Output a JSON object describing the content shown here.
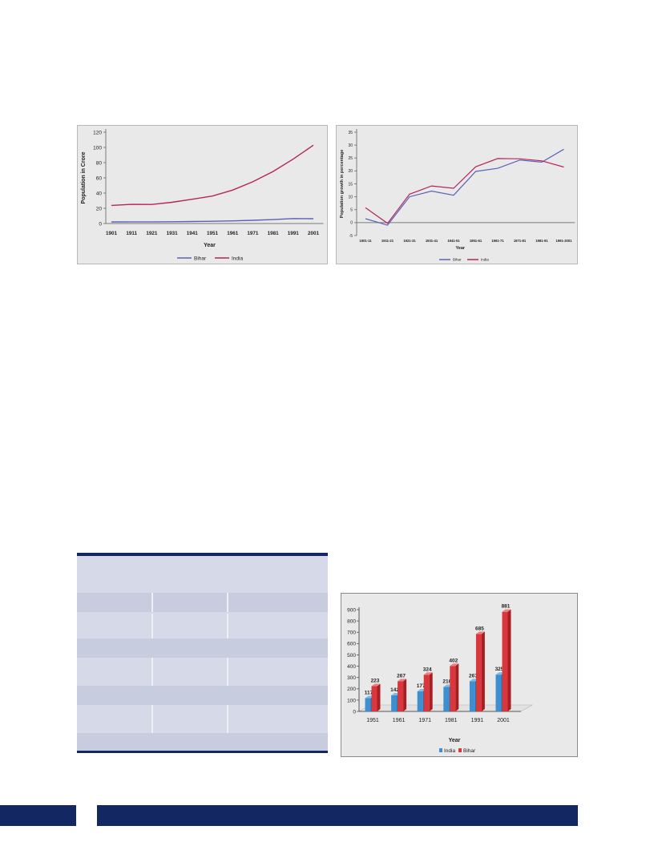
{
  "colors": {
    "navy": "#132763",
    "panel": "#e9e9e9",
    "india_line": "#b3255e",
    "bihar_line": "#5a62b5",
    "bar_india": "#3d8fd1",
    "bar_bihar": "#d9373c",
    "table_fill": "#d5d9e8",
    "table_header": "#c7ccdf"
  },
  "chart_data": [
    {
      "type": "line",
      "title": "",
      "xlabel": "Year",
      "ylabel": "Population in Crore",
      "categories": [
        "1901",
        "1911",
        "1921",
        "1931",
        "1941",
        "1951",
        "1961",
        "1971",
        "1981",
        "1991",
        "2001"
      ],
      "yticks": [
        "0",
        "20",
        "40",
        "60",
        "80",
        "100",
        "120"
      ],
      "ylim": [
        0,
        120
      ],
      "series": [
        {
          "name": "Bihar",
          "values": [
            2.1,
            2.2,
            2.2,
            2.3,
            2.6,
            3.0,
            3.5,
            4.2,
            5.2,
            6.5,
            6.3
          ]
        },
        {
          "name": "India",
          "values": [
            23.8,
            25.2,
            25.1,
            27.9,
            31.9,
            36.1,
            43.9,
            54.8,
            68.3,
            84.6,
            102.9
          ]
        }
      ],
      "legend_position": "bottom",
      "grid": false
    },
    {
      "type": "line",
      "title": "",
      "xlabel": "Year",
      "ylabel": "Population growth in percentage",
      "categories": [
        "1901-11",
        "1911-21",
        "1921-31",
        "1931-41",
        "1941-51",
        "1951-61",
        "1961-71",
        "1971-81",
        "1981-91",
        "1991-2001"
      ],
      "yticks": [
        "-5",
        "0",
        "5",
        "10",
        "15",
        "20",
        "25",
        "30",
        "35"
      ],
      "ylim": [
        -5,
        35
      ],
      "series": [
        {
          "name": "Bihar",
          "values": [
            1.5,
            -1.0,
            10.0,
            12.2,
            10.6,
            19.8,
            21.0,
            24.2,
            23.4,
            28.4
          ]
        },
        {
          "name": "India",
          "values": [
            5.8,
            -0.3,
            11.0,
            14.2,
            13.3,
            21.6,
            24.8,
            24.7,
            23.9,
            21.5
          ]
        }
      ],
      "legend_position": "bottom",
      "grid": false
    },
    {
      "type": "bar",
      "title": "",
      "xlabel": "Year",
      "ylabel": "",
      "categories": [
        "1951",
        "1961",
        "1971",
        "1981",
        "1991",
        "2001"
      ],
      "yticks": [
        "0",
        "100",
        "200",
        "300",
        "400",
        "500",
        "600",
        "700",
        "800",
        "900"
      ],
      "ylim": [
        0,
        900
      ],
      "series": [
        {
          "name": "India",
          "values": [
            117,
            142,
            177,
            216,
            267,
            325
          ]
        },
        {
          "name": "Bihar",
          "values": [
            223,
            267,
            324,
            402,
            685,
            881
          ]
        }
      ],
      "legend_position": "bottom",
      "grid": false
    }
  ],
  "table": {
    "header": "",
    "columns": [
      "",
      "",
      ""
    ],
    "rows": [
      [
        "",
        "",
        ""
      ],
      [
        ""
      ],
      [
        "",
        "",
        ""
      ],
      [
        ""
      ],
      [
        "",
        "",
        ""
      ],
      [
        ""
      ]
    ]
  },
  "footer": {
    "page_number": "",
    "title": ""
  }
}
